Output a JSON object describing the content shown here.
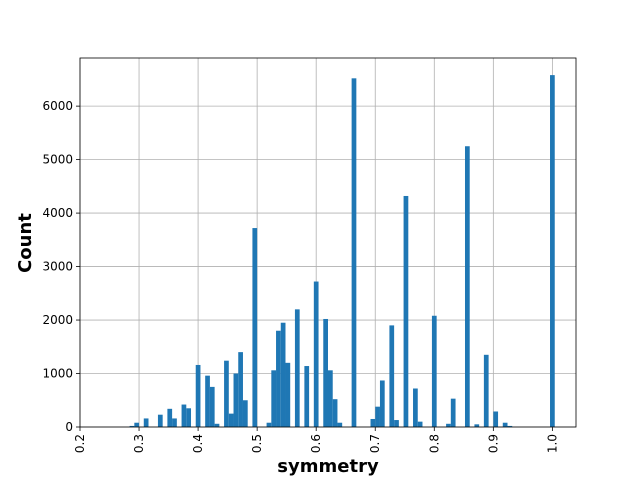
{
  "chart_data": {
    "type": "histogram",
    "xlabel": "symmetry",
    "ylabel": "Count",
    "color": "#1f77b4",
    "grid": true,
    "bins": [
      0.204,
      0.212,
      0.22,
      0.228,
      0.236,
      0.244,
      0.252,
      0.26,
      0.268,
      0.276,
      0.284,
      0.292,
      0.3,
      0.308,
      0.316,
      0.324,
      0.332,
      0.34,
      0.348,
      0.356,
      0.364,
      0.372,
      0.38,
      0.388,
      0.396,
      0.404,
      0.412,
      0.42,
      0.428,
      0.436,
      0.444,
      0.452,
      0.46,
      0.468,
      0.476,
      0.484,
      0.492,
      0.5,
      0.508,
      0.516,
      0.524,
      0.532,
      0.54,
      0.548,
      0.556,
      0.564,
      0.572,
      0.58,
      0.588,
      0.596,
      0.604,
      0.612,
      0.62,
      0.628,
      0.636,
      0.644,
      0.652,
      0.66,
      0.668,
      0.676,
      0.684,
      0.692,
      0.7,
      0.708,
      0.716,
      0.724,
      0.732,
      0.74,
      0.748,
      0.756,
      0.764,
      0.772,
      0.78,
      0.788,
      0.796,
      0.804,
      0.812,
      0.82,
      0.828,
      0.836,
      0.844,
      0.852,
      0.86,
      0.868,
      0.876,
      0.884,
      0.892,
      0.9,
      0.908,
      0.916,
      0.924,
      0.932,
      0.94,
      0.948,
      0.956,
      0.964,
      0.972,
      0.98,
      0.988,
      0.996,
      1.004
    ],
    "values": [
      0,
      0,
      0,
      0,
      0,
      0,
      0,
      0,
      0,
      0,
      20,
      80,
      0,
      160,
      0,
      0,
      230,
      0,
      340,
      160,
      0,
      420,
      350,
      0,
      1160,
      0,
      960,
      750,
      60,
      0,
      1240,
      250,
      1000,
      1400,
      500,
      0,
      3720,
      0,
      0,
      80,
      1060,
      1800,
      1950,
      1200,
      0,
      2200,
      0,
      1140,
      0,
      2720,
      0,
      2020,
      1060,
      520,
      80,
      0,
      0,
      6520,
      0,
      0,
      0,
      150,
      380,
      870,
      0,
      1900,
      130,
      0,
      4320,
      0,
      720,
      100,
      0,
      0,
      2080,
      0,
      0,
      60,
      530,
      0,
      0,
      5250,
      0,
      50,
      0,
      1350,
      0,
      290,
      0,
      80,
      20,
      0,
      0,
      0,
      0,
      0,
      0,
      0,
      0,
      6580
    ],
    "xlim": [
      0.2,
      1.04
    ],
    "ylim": [
      0,
      6900
    ],
    "xticks": [
      0.2,
      0.3,
      0.4,
      0.5,
      0.6,
      0.7,
      0.8,
      0.9,
      {
        "value": 1,
        "label": "1.0"
      }
    ],
    "yticks": [
      0,
      1000,
      2000,
      3000,
      4000,
      5000,
      6000
    ]
  }
}
